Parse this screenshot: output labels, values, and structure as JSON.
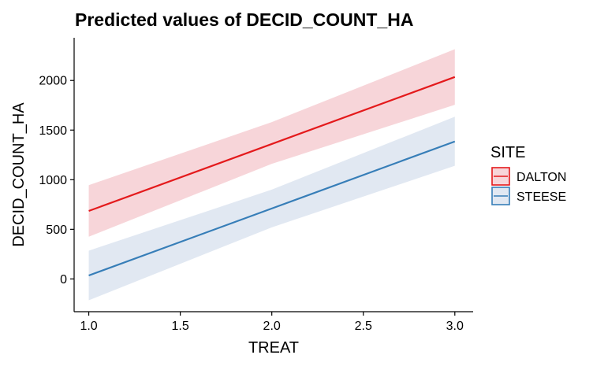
{
  "chart_data": {
    "type": "line",
    "title": "Predicted values of DECID_COUNT_HA",
    "xlabel": "TREAT",
    "ylabel": "DECID_COUNT_HA",
    "xlim": [
      0.92,
      3.1
    ],
    "ylim": [
      -330,
      2430
    ],
    "x_ticks": [
      1.0,
      1.5,
      2.0,
      2.5,
      3.0
    ],
    "x_tick_labels": [
      "1.0",
      "1.5",
      "2.0",
      "2.5",
      "3.0"
    ],
    "y_ticks": [
      0,
      500,
      1000,
      1500,
      2000
    ],
    "y_tick_labels": [
      "0",
      "500",
      "1000",
      "1500",
      "2000"
    ],
    "grid": false,
    "legend": {
      "title": "SITE",
      "position": "right"
    },
    "series": [
      {
        "name": "DALTON",
        "color": "#E41A1C",
        "fill": "#F7D5D9",
        "x": [
          1.0,
          2.0,
          3.0
        ],
        "y": [
          685,
          1360,
          2035
        ],
        "ci_low": [
          425,
          1160,
          1755
        ],
        "ci_high": [
          945,
          1580,
          2315
        ]
      },
      {
        "name": "STEESE",
        "color": "#377EB8",
        "fill": "#E1E8F2",
        "x": [
          1.0,
          2.0,
          3.0
        ],
        "y": [
          35,
          710,
          1385
        ],
        "ci_low": [
          -215,
          520,
          1140
        ],
        "ci_high": [
          285,
          900,
          1635
        ]
      }
    ]
  }
}
